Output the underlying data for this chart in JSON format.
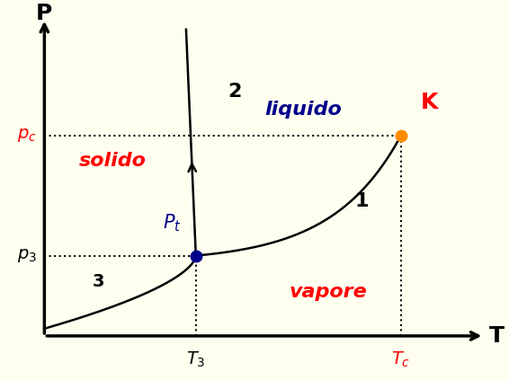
{
  "background_color": "#FFFFF0",
  "axis_color": "#000000",
  "xlabel": "T",
  "ylabel": "P",
  "triple_point": [
    0.38,
    0.32
  ],
  "critical_point": [
    0.8,
    0.65
  ],
  "triple_color": "#00008B",
  "critical_color": "#FF8C00",
  "red_color": "#FF0000",
  "blue_dark": "#00008B",
  "black": "#000000",
  "label_solido": "solido",
  "label_liquido": "liquido",
  "label_vapore": "vapore",
  "label_1": "1",
  "label_2": "2",
  "label_3": "3",
  "label_Pt": "$P_t$",
  "label_K": "K",
  "label_p3": "$p_3$",
  "label_pc": "$p_c$",
  "label_T3": "$T_3$",
  "label_Tc": "$T_c$"
}
